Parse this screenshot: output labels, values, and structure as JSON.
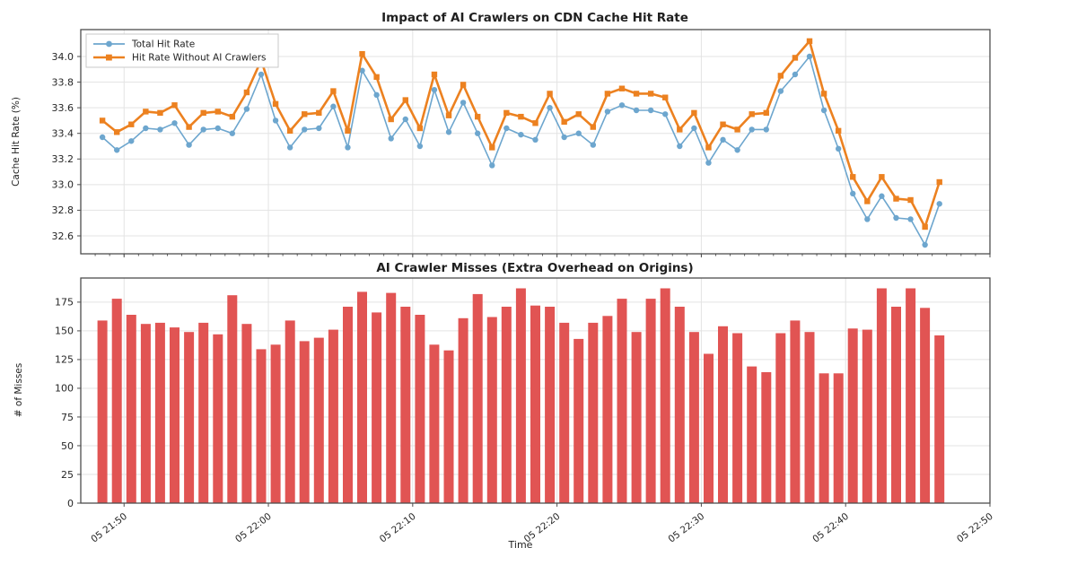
{
  "figure": {
    "background": "#ffffff",
    "grid_color": "#e3e3e3",
    "spine_color": "#4d4d4d"
  },
  "chart_data": [
    {
      "type": "line",
      "title": "Impact of AI Crawlers on CDN Cache Hit Rate",
      "ylabel": "Cache Hit Rate (%)",
      "ylim": [
        32.46,
        34.21
      ],
      "yticks": [
        32.6,
        32.8,
        33.0,
        33.2,
        33.4,
        33.6,
        33.8,
        34.0
      ],
      "grid": true,
      "legend_position": "upper left",
      "x_times": [
        "21:48",
        "21:49",
        "21:50",
        "21:51",
        "21:52",
        "21:53",
        "21:54",
        "21:55",
        "21:56",
        "21:57",
        "21:58",
        "21:59",
        "22:00",
        "22:01",
        "22:02",
        "22:03",
        "22:04",
        "22:05",
        "22:06",
        "22:07",
        "22:08",
        "22:09",
        "22:10",
        "22:11",
        "22:12",
        "22:13",
        "22:14",
        "22:15",
        "22:16",
        "22:17",
        "22:18",
        "22:19",
        "22:20",
        "22:21",
        "22:22",
        "22:23",
        "22:24",
        "22:25",
        "22:26",
        "22:27",
        "22:28",
        "22:29",
        "22:30",
        "22:31",
        "22:32",
        "22:33",
        "22:34",
        "22:35",
        "22:36",
        "22:37",
        "22:38",
        "22:39",
        "22:40",
        "22:41",
        "22:42",
        "22:43",
        "22:44",
        "22:45",
        "22:46"
      ],
      "series": [
        {
          "name": "Total Hit Rate",
          "color": "#6da6ce",
          "marker": "circle",
          "values": [
            33.37,
            33.27,
            33.34,
            33.44,
            33.43,
            33.48,
            33.31,
            33.43,
            33.44,
            33.4,
            33.59,
            33.86,
            33.5,
            33.29,
            33.43,
            33.44,
            33.61,
            33.29,
            33.89,
            33.7,
            33.36,
            33.51,
            33.3,
            33.74,
            33.41,
            33.64,
            33.4,
            33.15,
            33.44,
            33.39,
            33.35,
            33.6,
            33.37,
            33.4,
            33.31,
            33.57,
            33.62,
            33.58,
            33.58,
            33.55,
            33.3,
            33.44,
            33.17,
            33.35,
            33.27,
            33.43,
            33.43,
            33.73,
            33.86,
            34.0,
            33.58,
            33.28,
            32.93,
            32.73,
            32.91,
            32.74,
            32.73,
            32.53,
            32.85
          ]
        },
        {
          "name": "Hit Rate Without AI Crawlers",
          "color": "#ec8120",
          "marker": "square",
          "values": [
            33.5,
            33.41,
            33.47,
            33.57,
            33.56,
            33.62,
            33.45,
            33.56,
            33.57,
            33.53,
            33.72,
            33.97,
            33.63,
            33.42,
            33.55,
            33.56,
            33.73,
            33.42,
            34.02,
            33.84,
            33.51,
            33.66,
            33.44,
            33.86,
            33.54,
            33.78,
            33.53,
            33.29,
            33.56,
            33.53,
            33.48,
            33.71,
            33.49,
            33.55,
            33.45,
            33.71,
            33.75,
            33.71,
            33.71,
            33.68,
            33.43,
            33.56,
            33.29,
            33.47,
            33.43,
            33.55,
            33.56,
            33.85,
            33.99,
            34.12,
            33.71,
            33.42,
            33.06,
            32.87,
            33.06,
            32.89,
            32.88,
            32.67,
            33.02
          ]
        }
      ],
      "x_axis_ticks": [
        {
          "label": "05 21:50",
          "minute": 2
        },
        {
          "label": "05 22:00",
          "minute": 12
        },
        {
          "label": "05 22:10",
          "minute": 22
        },
        {
          "label": "05 22:20",
          "minute": 32
        },
        {
          "label": "05 22:30",
          "minute": 42
        },
        {
          "label": "05 22:40",
          "minute": 52
        },
        {
          "label": "05 22:50",
          "minute": 62
        }
      ]
    },
    {
      "type": "bar",
      "title": "AI Crawler Misses (Extra Overhead on Origins)",
      "ylabel": "# of Misses",
      "xlabel": "Time",
      "ylim": [
        0,
        196
      ],
      "yticks": [
        0,
        25,
        50,
        75,
        100,
        125,
        150,
        175
      ],
      "bar_color": "#e15453",
      "grid": true,
      "x_times": [
        "21:48",
        "21:49",
        "21:50",
        "21:51",
        "21:52",
        "21:53",
        "21:54",
        "21:55",
        "21:56",
        "21:57",
        "21:58",
        "21:59",
        "22:00",
        "22:01",
        "22:02",
        "22:03",
        "22:04",
        "22:05",
        "22:06",
        "22:07",
        "22:08",
        "22:09",
        "22:10",
        "22:11",
        "22:12",
        "22:13",
        "22:14",
        "22:15",
        "22:16",
        "22:17",
        "22:18",
        "22:19",
        "22:20",
        "22:21",
        "22:22",
        "22:23",
        "22:24",
        "22:25",
        "22:26",
        "22:27",
        "22:28",
        "22:29",
        "22:30",
        "22:31",
        "22:32",
        "22:33",
        "22:34",
        "22:35",
        "22:36",
        "22:37",
        "22:38",
        "22:39",
        "22:40",
        "22:41",
        "22:42",
        "22:43",
        "22:44",
        "22:45",
        "22:46"
      ],
      "values": [
        159,
        178,
        164,
        156,
        157,
        153,
        149,
        157,
        147,
        181,
        156,
        134,
        138,
        159,
        141,
        144,
        151,
        171,
        184,
        166,
        183,
        171,
        164,
        138,
        133,
        161,
        182,
        162,
        171,
        187,
        172,
        171,
        157,
        143,
        157,
        163,
        178,
        149,
        178,
        187,
        171,
        149,
        130,
        154,
        148,
        119,
        114,
        148,
        159,
        149,
        113,
        113,
        152,
        151,
        187,
        171,
        187,
        170,
        146
      ],
      "x_axis_ticks": [
        {
          "label": "05 21:50",
          "minute": 2
        },
        {
          "label": "05 22:00",
          "minute": 12
        },
        {
          "label": "05 22:10",
          "minute": 22
        },
        {
          "label": "05 22:20",
          "minute": 32
        },
        {
          "label": "05 22:30",
          "minute": 42
        },
        {
          "label": "05 22:40",
          "minute": 52
        },
        {
          "label": "05 22:50",
          "minute": 62
        }
      ]
    }
  ]
}
